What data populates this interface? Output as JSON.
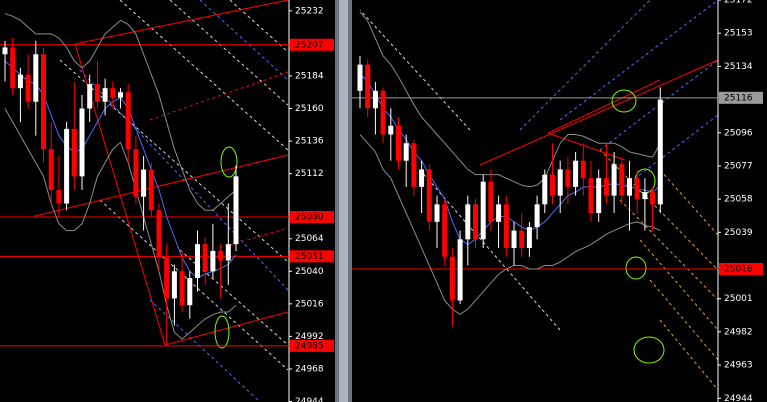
{
  "chart_data": [
    {
      "type": "candlestick",
      "up_color": "#ffffff",
      "down_color": "#ff0000",
      "open": [
        25200,
        25205,
        25175,
        25185,
        25165,
        25200,
        25130,
        25100,
        25090,
        25145,
        25110,
        25160,
        25178,
        25165,
        25175,
        25168,
        25172,
        25130,
        25095,
        25115,
        25085,
        25050,
        25020,
        25040,
        25015,
        25035,
        25060,
        25040,
        25055,
        25048,
        25060
      ],
      "high": [
        25210,
        25212,
        25190,
        25200,
        25210,
        25205,
        25150,
        25125,
        25150,
        25180,
        25170,
        25185,
        25195,
        25182,
        25180,
        25175,
        25178,
        25140,
        25125,
        25120,
        25090,
        25060,
        25045,
        25055,
        25040,
        25070,
        25065,
        25075,
        25060,
        25090,
        25118
      ],
      "low": [
        25180,
        25170,
        25150,
        25160,
        25140,
        25120,
        25090,
        25080,
        25085,
        25100,
        25100,
        25150,
        25160,
        25155,
        25160,
        25160,
        25120,
        25090,
        25070,
        25080,
        25040,
        24985,
        25000,
        25010,
        25005,
        25025,
        25030,
        25035,
        25020,
        25030,
        25055
      ],
      "close": [
        25205,
        25175,
        25185,
        25165,
        25200,
        25130,
        25100,
        25090,
        25145,
        25110,
        25160,
        25178,
        25165,
        25175,
        25168,
        25172,
        25130,
        25095,
        25115,
        25085,
        25050,
        25020,
        25040,
        25015,
        25035,
        25060,
        25040,
        25055,
        25048,
        25060,
        25110
      ],
      "overlays": [
        {
          "color": "#8c8c8c",
          "values": [
            25230,
            25228,
            25225,
            25220,
            25215,
            25215,
            25215,
            25212,
            25205,
            25195,
            25190,
            25195,
            25205,
            25215,
            25220,
            25225,
            25222,
            25215,
            25200,
            25185,
            25170,
            25150,
            25130,
            25115,
            25100,
            25090,
            25085,
            25085,
            25090,
            25095,
            25100
          ]
        },
        {
          "color": "#8c8c8c",
          "values": [
            25160,
            25150,
            25140,
            25130,
            25120,
            25110,
            25090,
            25075,
            25070,
            25070,
            25075,
            25090,
            25110,
            25120,
            25130,
            25135,
            25120,
            25100,
            25080,
            25060,
            25040,
            25015,
            24995,
            24990,
            24995,
            25000,
            25005,
            25008,
            25010,
            25010,
            25015
          ]
        },
        {
          "color": "#4f6bff",
          "values": [
            25195,
            25190,
            25185,
            25180,
            25178,
            25170,
            25155,
            25140,
            25132,
            25128,
            25130,
            25140,
            25150,
            25160,
            25165,
            25168,
            25160,
            25145,
            25130,
            25115,
            25100,
            25080,
            25065,
            25050,
            25040,
            25035,
            25038,
            25040,
            25042,
            25045,
            25052
          ]
        }
      ],
      "ylim": [
        24944,
        25240
      ],
      "yticks": [
        25232,
        25184,
        25160,
        25136,
        25112,
        25064,
        25040,
        25016,
        24992,
        24968,
        24944
      ],
      "levels": [
        {
          "value": 25207,
          "color": "#ff0000"
        },
        {
          "value": 25080,
          "color": "#ff0000"
        },
        {
          "value": 25051,
          "color": "#ff0000"
        },
        {
          "value": 24985,
          "color": "#ff0000"
        }
      ]
    },
    {
      "type": "candlestick",
      "up_color": "#ffffff",
      "down_color": "#ff0000",
      "open": [
        25120,
        25135,
        25110,
        25120,
        25095,
        25100,
        25080,
        25090,
        25065,
        25075,
        25045,
        25055,
        25025,
        25000,
        25035,
        25055,
        25035,
        25068,
        25045,
        25055,
        25030,
        25040,
        25030,
        25042,
        25055,
        25072,
        25060,
        25075,
        25065,
        25080,
        25070,
        25050,
        25070,
        25060,
        25078,
        25060,
        25070,
        25058,
        25062,
        25055
      ],
      "high": [
        25140,
        25138,
        25125,
        25122,
        25110,
        25105,
        25095,
        25092,
        25080,
        25078,
        25060,
        25058,
        25030,
        25040,
        25060,
        25058,
        25072,
        25075,
        25060,
        25060,
        25045,
        25050,
        25045,
        25060,
        25075,
        25090,
        25080,
        25082,
        25085,
        25090,
        25080,
        25075,
        25090,
        25085,
        25082,
        25080,
        25075,
        25070,
        25065,
        25122
      ],
      "low": [
        25110,
        25105,
        25095,
        25090,
        25080,
        25075,
        25065,
        25060,
        25050,
        25040,
        25030,
        25020,
        24985,
        24998,
        25020,
        25030,
        25030,
        25040,
        25030,
        25025,
        25020,
        25025,
        25025,
        25035,
        25050,
        25055,
        25050,
        25055,
        25060,
        25060,
        25045,
        25045,
        25055,
        25050,
        25055,
        25040,
        25050,
        25040,
        25040,
        25050
      ],
      "close": [
        25135,
        25110,
        25120,
        25095,
        25100,
        25080,
        25090,
        25065,
        25075,
        25045,
        25055,
        25025,
        25000,
        25035,
        25055,
        25035,
        25068,
        25045,
        25055,
        25030,
        25040,
        25030,
        25042,
        25055,
        25072,
        25060,
        25075,
        25065,
        25080,
        25070,
        25050,
        25070,
        25060,
        25078,
        25060,
        25070,
        25058,
        25062,
        25055,
        25115
      ],
      "overlays": [
        {
          "color": "#8c8c8c",
          "values": [
            25165,
            25160,
            25150,
            25140,
            25135,
            25128,
            25120,
            25112,
            25105,
            25100,
            25095,
            25090,
            25085,
            25080,
            25075,
            25072,
            25072,
            25072,
            25072,
            25070,
            25068,
            25066,
            25065,
            25066,
            25070,
            25080,
            25090,
            25095,
            25095,
            25094,
            25092,
            25090,
            25090,
            25090,
            25088,
            25085,
            25084,
            25083,
            25082,
            25090
          ]
        },
        {
          "color": "#8c8c8c",
          "values": [
            25095,
            25090,
            25085,
            25075,
            25070,
            25060,
            25050,
            25040,
            25030,
            25020,
            25010,
            25000,
            24995,
            24992,
            24995,
            25000,
            25005,
            25010,
            25015,
            25018,
            25020,
            25020,
            25018,
            25018,
            25020,
            25020,
            25022,
            25025,
            25028,
            25030,
            25032,
            25035,
            25038,
            25040,
            25042,
            25044,
            25045,
            25043,
            25042,
            25040
          ]
        },
        {
          "color": "#4f6bff",
          "values": [
            25130,
            25125,
            25118,
            25110,
            25105,
            25098,
            25092,
            25085,
            25080,
            25072,
            25065,
            25058,
            25045,
            25035,
            25032,
            25035,
            25040,
            25045,
            25048,
            25048,
            25045,
            25042,
            25040,
            25042,
            25045,
            25050,
            25055,
            25060,
            25062,
            25065,
            25065,
            25065,
            25066,
            25067,
            25066,
            25065,
            25064,
            25063,
            25062,
            25066
          ]
        }
      ],
      "ylim": [
        24943,
        25172
      ],
      "yticks": [
        25172,
        25153,
        25134,
        25096,
        25077,
        25058,
        25039,
        25001,
        24982,
        24963,
        24944
      ],
      "levels": [
        {
          "value": 25116,
          "color": "#9a9a9a"
        },
        {
          "value": 25018,
          "color": "#ff0000"
        }
      ]
    }
  ]
}
